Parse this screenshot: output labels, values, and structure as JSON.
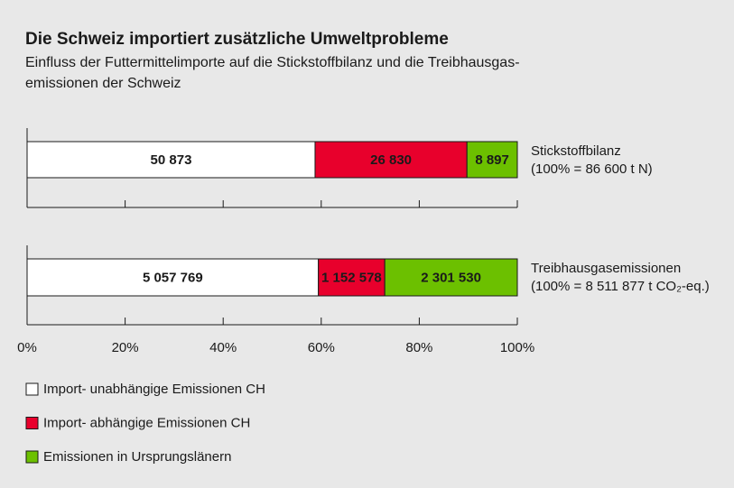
{
  "chart_data": {
    "type": "stacked_bar_100",
    "title": "Die Schweiz importiert zusätzliche Umweltprobleme",
    "subtitle": [
      "Einfluss der Futtermittelimporte auf die Stickstoffbilanz und die Treibhausgas-",
      "emissionen der Schweiz"
    ],
    "categories": [
      "Stickstoffbilanz",
      "Treibhausgasemissionen"
    ],
    "category_notes": [
      "(100% = 86 600 t N)",
      "(100% = 8 511 877 t CO₂-eq.)"
    ],
    "series": [
      {
        "name": "Import- unabhängige Emissionen CH",
        "color": "#ffffff",
        "values": [
          50873,
          5057769
        ],
        "value_labels": [
          "50 873",
          "5 057 769"
        ]
      },
      {
        "name": "Import- abhängige Emissionen CH",
        "color": "#e8002c",
        "values": [
          26830,
          1152578
        ],
        "value_labels": [
          "26 830",
          "1 152 578"
        ]
      },
      {
        "name": "Emissionen in Ursprungslänern",
        "color": "#6cc000",
        "values": [
          8897,
          2301530
        ],
        "value_labels": [
          "8 897",
          "2 301 530"
        ]
      }
    ],
    "xlim": [
      0,
      100
    ],
    "xticks": [
      {
        "value": 0,
        "label": "0%"
      },
      {
        "value": 20,
        "label": "20%"
      },
      {
        "value": 40,
        "label": "40%"
      },
      {
        "value": 60,
        "label": "60%"
      },
      {
        "value": 80,
        "label": "80%"
      },
      {
        "value": 100,
        "label": "100%"
      }
    ]
  }
}
